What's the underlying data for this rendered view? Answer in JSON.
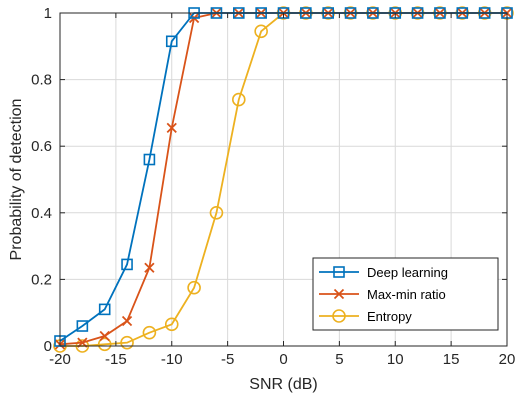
{
  "chart_data": {
    "type": "line",
    "xlabel": "SNR (dB)",
    "ylabel": "Probability of detection",
    "xlim": [
      -20,
      20
    ],
    "ylim": [
      0,
      1
    ],
    "xticks": [
      -20,
      -15,
      -10,
      -5,
      0,
      5,
      10,
      15,
      20
    ],
    "yticks": [
      0,
      0.2,
      0.4,
      0.6,
      0.8,
      1
    ],
    "xtick_labels": [
      "-20",
      "-15",
      "-10",
      "-5",
      "0",
      "5",
      "10",
      "15",
      "20"
    ],
    "ytick_labels": [
      "0",
      "0.2",
      "0.4",
      "0.6",
      "0.8",
      "1"
    ],
    "grid": true,
    "legend_position": "bottom-right",
    "x": [
      -20,
      -18,
      -16,
      -14,
      -12,
      -10,
      -8,
      -6,
      -4,
      -2,
      0,
      2,
      4,
      6,
      8,
      10,
      12,
      14,
      16,
      18,
      20
    ],
    "series": [
      {
        "name": "Deep learning",
        "marker": "square",
        "color": "#0072BD",
        "values": [
          0.015,
          0.06,
          0.11,
          0.245,
          0.56,
          0.915,
          1.0,
          1.0,
          1.0,
          1.0,
          1.0,
          1.0,
          1.0,
          1.0,
          1.0,
          1.0,
          1.0,
          1.0,
          1.0,
          1.0,
          1.0
        ]
      },
      {
        "name": "Max-min ratio",
        "marker": "x",
        "color": "#D95319",
        "values": [
          0.005,
          0.01,
          0.03,
          0.075,
          0.235,
          0.655,
          0.985,
          1.0,
          1.0,
          1.0,
          1.0,
          1.0,
          1.0,
          1.0,
          1.0,
          1.0,
          1.0,
          1.0,
          1.0,
          1.0,
          1.0
        ]
      },
      {
        "name": "Entropy",
        "marker": "circle",
        "color": "#EDB120",
        "values": [
          0.0,
          0.0,
          0.005,
          0.01,
          0.04,
          0.065,
          0.175,
          0.4,
          0.74,
          0.945,
          1.0,
          1.0,
          1.0,
          1.0,
          1.0,
          1.0,
          1.0,
          1.0,
          1.0,
          1.0,
          1.0
        ]
      }
    ]
  }
}
